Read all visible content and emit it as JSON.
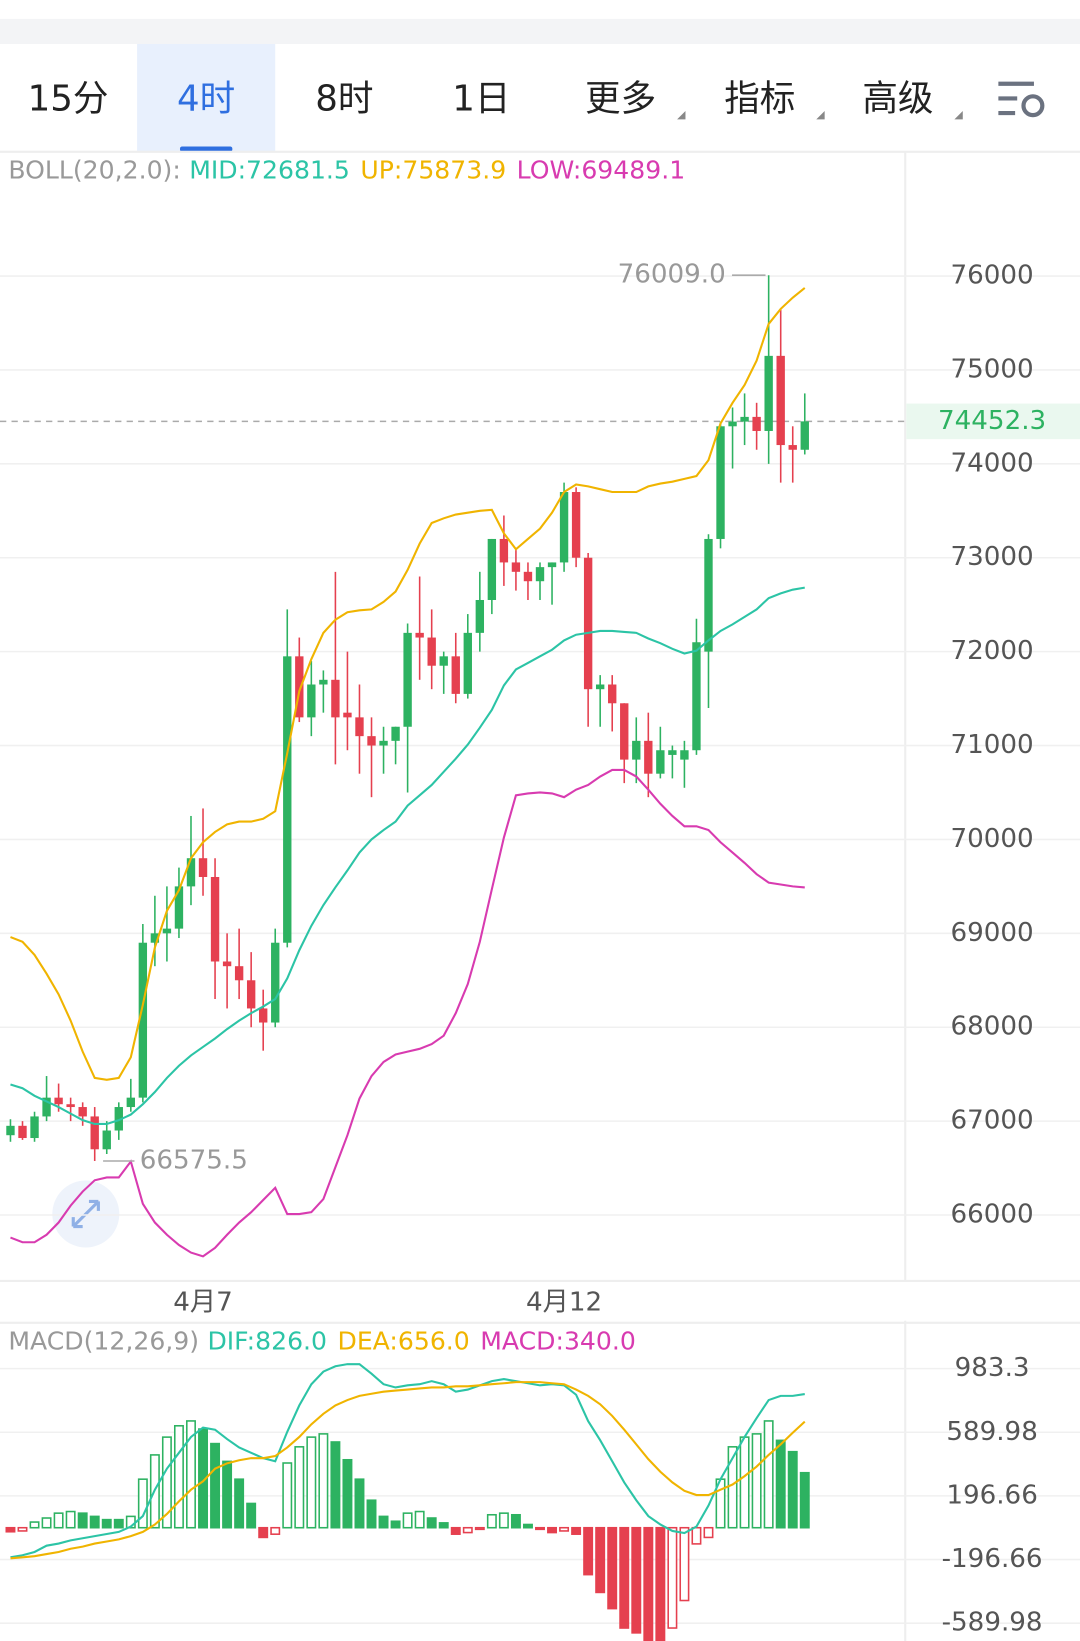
{
  "tabs": [
    "15分",
    "4时",
    "8时",
    "1日",
    "更多",
    "指标",
    "高级"
  ],
  "selected_tab": "4时",
  "chart_data": [
    {
      "type": "candlestick",
      "indicator": "BOLL(20,2.0):",
      "categories": [
        null,
        null,
        null,
        null,
        null,
        null,
        null,
        null,
        null,
        null,
        null,
        null,
        null,
        null,
        null,
        null,
        "4月7",
        null,
        null,
        null,
        null,
        null,
        null,
        null,
        null,
        null,
        null,
        null,
        null,
        null,
        null,
        null,
        null,
        null,
        null,
        null,
        null,
        null,
        null,
        null,
        null,
        null,
        null,
        null,
        null,
        null,
        "4月12",
        null,
        null,
        null,
        null,
        null,
        null,
        null,
        null,
        null,
        null,
        null,
        null,
        null,
        null,
        null,
        null,
        null,
        null,
        null,
        null
      ],
      "open": [
        66850,
        66950,
        66820,
        67050,
        67250,
        67180,
        67150,
        67050,
        66700,
        66900,
        67150,
        67250,
        68900,
        69000,
        69050,
        69500,
        69800,
        69600,
        68700,
        68650,
        68500,
        68200,
        68050,
        68900,
        71950,
        71300,
        71650,
        71700,
        71350,
        71300,
        71100,
        71000,
        71050,
        71200,
        72200,
        72150,
        71850,
        71950,
        71550,
        72200,
        72550,
        73200,
        72950,
        72850,
        72750,
        72900,
        72950,
        73700,
        73000,
        71600,
        71650,
        71450,
        70850,
        71050,
        70700,
        70900,
        70850,
        70950,
        72000,
        73200,
        74400,
        74450,
        74500,
        74350,
        75150,
        74200,
        74150
      ],
      "high": [
        67020,
        67000,
        67100,
        67480,
        67400,
        67250,
        67200,
        67150,
        67000,
        67200,
        67450,
        69100,
        69400,
        69500,
        69700,
        70250,
        70330,
        69800,
        69000,
        69050,
        68800,
        68400,
        69050,
        72450,
        72150,
        71900,
        71800,
        72850,
        72000,
        71650,
        71300,
        71200,
        71200,
        72300,
        72800,
        72450,
        72000,
        72200,
        72400,
        72850,
        73200,
        73450,
        73100,
        72950,
        72950,
        72950,
        73800,
        73750,
        73050,
        71750,
        71750,
        71450,
        71300,
        71350,
        71200,
        71000,
        71050,
        72350,
        73250,
        74450,
        74600,
        74750,
        74650,
        76009,
        75650,
        74400,
        74750
      ],
      "low": [
        66780,
        66800,
        66780,
        67000,
        67100,
        67000,
        66950,
        66575.5,
        66650,
        66800,
        67100,
        67200,
        68650,
        68700,
        68950,
        69300,
        69400,
        68300,
        68200,
        68300,
        68000,
        67750,
        68000,
        68850,
        71250,
        71100,
        71350,
        70800,
        70950,
        70700,
        70450,
        70700,
        70800,
        70500,
        71700,
        71600,
        71550,
        71450,
        71500,
        72000,
        72400,
        72700,
        72650,
        72550,
        72550,
        72500,
        72850,
        72900,
        71200,
        71200,
        71150,
        70600,
        70600,
        70450,
        70650,
        70650,
        70550,
        70900,
        71400,
        73100,
        73950,
        74200,
        74150,
        74000,
        73800,
        73800,
        74100
      ],
      "close": [
        66950,
        66820,
        67050,
        67250,
        67180,
        67150,
        67050,
        66700,
        66900,
        67150,
        67250,
        68900,
        69000,
        69050,
        69500,
        69800,
        69600,
        68700,
        68650,
        68500,
        68200,
        68050,
        68900,
        71950,
        71300,
        71650,
        71700,
        71300,
        71300,
        71100,
        71000,
        71050,
        71200,
        72200,
        72150,
        71850,
        71950,
        71550,
        72200,
        72550,
        73200,
        72950,
        72850,
        72750,
        72900,
        72950,
        73700,
        73000,
        71600,
        71650,
        71450,
        70850,
        71050,
        70700,
        70950,
        70950,
        70950,
        72100,
        73200,
        74400,
        74450,
        74500,
        74350,
        75150,
        74200,
        74150,
        74452.3
      ],
      "up_color": "#2db261",
      "down_color": "#e5404f",
      "series": [
        {
          "name": "MID:72681.5",
          "color": "#2cc4a6",
          "values": [
            67390,
            67350,
            67270,
            67210,
            67150,
            67080,
            67010,
            66970,
            66970,
            67010,
            67070,
            67180,
            67310,
            67460,
            67590,
            67700,
            67790,
            67880,
            67980,
            68070,
            68150,
            68220,
            68300,
            68520,
            68820,
            69080,
            69300,
            69490,
            69670,
            69860,
            70000,
            70100,
            70190,
            70360,
            70470,
            70580,
            70720,
            70860,
            71010,
            71190,
            71380,
            71640,
            71810,
            71880,
            71950,
            72020,
            72120,
            72180,
            72200,
            72220,
            72220,
            72210,
            72200,
            72140,
            72090,
            72030,
            71980,
            72010,
            72120,
            72220,
            72290,
            72370,
            72450,
            72570,
            72620,
            72660,
            72681.5
          ]
        },
        {
          "name": "UP:75873.9",
          "color": "#f0b400",
          "values": [
            68960,
            68910,
            68770,
            68570,
            68350,
            68070,
            67740,
            67460,
            67440,
            67460,
            67680,
            68240,
            68850,
            69240,
            69460,
            69800,
            69970,
            70080,
            70160,
            70190,
            70190,
            70220,
            70300,
            70920,
            71580,
            71920,
            72200,
            72340,
            72420,
            72440,
            72450,
            72530,
            72640,
            72870,
            73150,
            73370,
            73420,
            73460,
            73480,
            73500,
            73510,
            73260,
            73090,
            73200,
            73310,
            73480,
            73700,
            73780,
            73760,
            73730,
            73700,
            73700,
            73700,
            73760,
            73790,
            73810,
            73840,
            73870,
            74040,
            74430,
            74650,
            74840,
            75100,
            75490,
            75650,
            75770,
            75873.9
          ]
        },
        {
          "name": "LOW:69489.1",
          "color": "#d83bb0",
          "values": [
            65760,
            65710,
            65710,
            65790,
            65920,
            66100,
            66250,
            66370,
            66400,
            66400,
            66570,
            66120,
            65920,
            65790,
            65680,
            65600,
            65560,
            65650,
            65790,
            65920,
            66030,
            66160,
            66290,
            66010,
            66010,
            66030,
            66170,
            66510,
            66850,
            67240,
            67480,
            67630,
            67710,
            67740,
            67770,
            67820,
            67910,
            68150,
            68460,
            68910,
            69470,
            70020,
            70470,
            70490,
            70500,
            70490,
            70450,
            70530,
            70580,
            70670,
            70740,
            70740,
            70670,
            70530,
            70380,
            70250,
            70140,
            70140,
            70100,
            69970,
            69860,
            69750,
            69630,
            69540,
            69520,
            69500,
            69489.1
          ]
        }
      ],
      "ylim": [
        65320,
        77290
      ],
      "yticks": [
        66000,
        67000,
        68000,
        69000,
        70000,
        71000,
        72000,
        73000,
        74000,
        75000,
        76000
      ],
      "grid": true,
      "last_price": 74452.3,
      "max_label": {
        "value": 76009,
        "label": "76009.0"
      },
      "min_label": 66575.5
    },
    {
      "type": "macd",
      "indicator": "MACD(12,26,9)",
      "up_color": "#2db261",
      "down_color": "#e5404f",
      "series": [
        {
          "name": "DIF:826.0",
          "color": "#2cc4a6",
          "values": [
            -183,
            -170,
            -150,
            -111,
            -98,
            -78,
            -65,
            -52,
            -39,
            -26,
            7,
            72,
            235,
            365,
            463,
            561,
            619,
            606,
            548,
            496,
            463,
            430,
            411,
            593,
            756,
            887,
            965,
            998,
            1011,
            1011,
            952,
            887,
            867,
            880,
            887,
            906,
            887,
            841,
            854,
            880,
            906,
            919,
            906,
            893,
            880,
            887,
            880,
            822,
            659,
            541,
            411,
            280,
            170,
            72,
            20,
            -20,
            -33,
            7,
            137,
            300,
            430,
            561,
            678,
            789,
            815,
            815,
            826
          ]
        },
        {
          "name": "DEA:656.0",
          "color": "#f0b400",
          "values": [
            -189,
            -183,
            -176,
            -163,
            -150,
            -130,
            -117,
            -98,
            -85,
            -72,
            -52,
            -26,
            20,
            85,
            163,
            235,
            287,
            365,
            398,
            417,
            430,
            430,
            443,
            496,
            561,
            639,
            704,
            756,
            789,
            815,
            828,
            841,
            848,
            854,
            861,
            867,
            867,
            874,
            874,
            880,
            887,
            893,
            900,
            900,
            900,
            893,
            887,
            854,
            815,
            763,
            691,
            606,
            515,
            424,
            346,
            280,
            228,
            202,
            202,
            235,
            267,
            319,
            378,
            450,
            515,
            587,
            656
          ]
        },
        {
          "name": "MACD:340.0",
          "color": "#d83bb0",
          "bars": true,
          "values": [
            -25,
            -20,
            35,
            60,
            90,
            100,
            90,
            70,
            50,
            50,
            70,
            300,
            450,
            560,
            630,
            660,
            610,
            520,
            410,
            300,
            150,
            -60,
            -40,
            400,
            500,
            560,
            580,
            530,
            420,
            300,
            170,
            70,
            40,
            90,
            100,
            60,
            30,
            -40,
            -30,
            -10,
            80,
            90,
            80,
            20,
            -10,
            -30,
            -20,
            -40,
            -290,
            -400,
            -500,
            -620,
            -650,
            -700,
            -700,
            -620,
            -450,
            -100,
            -60,
            300,
            500,
            560,
            580,
            660,
            540,
            470,
            340
          ]
        }
      ],
      "ylim": [
        -700,
        1260
      ],
      "yticks": [
        983.3,
        589.98,
        196.66,
        -196.66,
        -589.98
      ],
      "grid": true
    }
  ]
}
